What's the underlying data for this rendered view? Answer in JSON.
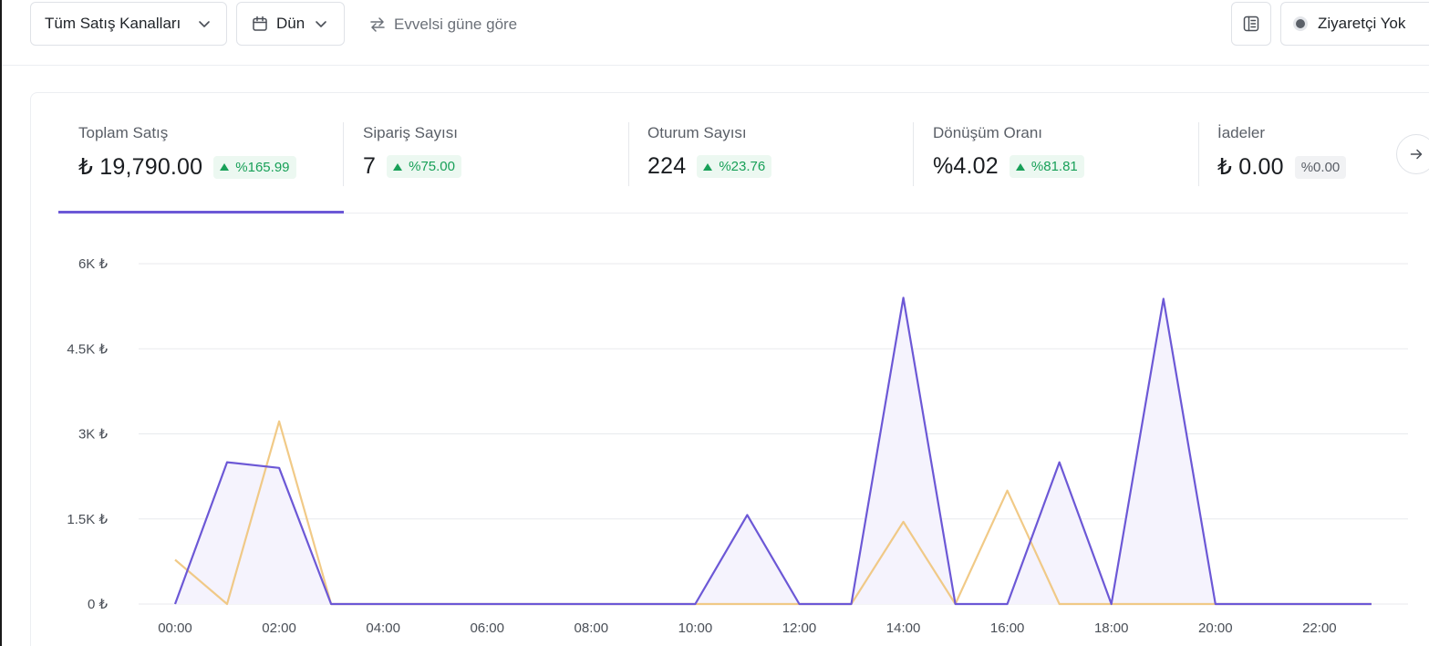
{
  "toolbar": {
    "channel_label": "Tüm Satış Kanalları",
    "date_label": "Dün",
    "compare_label": "Evvelsi güne göre",
    "visitor_label": "Ziyaretçi Yok"
  },
  "metrics": [
    {
      "label": "Toplam Satış",
      "value": "₺ 19,790.00",
      "change": "%165.99",
      "trend": "up"
    },
    {
      "label": "Sipariş Sayısı",
      "value": "7",
      "change": "%75.00",
      "trend": "up"
    },
    {
      "label": "Oturum Sayısı",
      "value": "224",
      "change": "%23.76",
      "trend": "up"
    },
    {
      "label": "Dönüşüm Oranı",
      "value": "%4.02",
      "change": "%81.81",
      "trend": "up"
    },
    {
      "label": "İadeler",
      "value": "₺ 0.00",
      "change": "%0.00",
      "trend": "neutral"
    }
  ],
  "icons": {
    "channel_chevron": "chevron-down-icon",
    "calendar": "calendar-icon",
    "compare": "swap-arrows-icon",
    "panel": "panel-layout-icon",
    "next": "arrow-right-icon"
  },
  "colors": {
    "current": "#6c58d6",
    "previous": "#f0c47a",
    "area": "#f5f3fd",
    "positive": "#18a058"
  },
  "chart_data": {
    "type": "line",
    "ylim": [
      0,
      6000
    ],
    "yticks": [
      {
        "value": 0,
        "label": "0 ₺"
      },
      {
        "value": 1500,
        "label": "1.5K ₺"
      },
      {
        "value": 3000,
        "label": "3K ₺"
      },
      {
        "value": 4500,
        "label": "4.5K ₺"
      },
      {
        "value": 6000,
        "label": "6K ₺"
      }
    ],
    "xticks": [
      "00:00",
      "02:00",
      "04:00",
      "06:00",
      "08:00",
      "10:00",
      "12:00",
      "14:00",
      "16:00",
      "18:00",
      "20:00",
      "22:00"
    ],
    "x": [
      0,
      1,
      2,
      3,
      4,
      5,
      6,
      7,
      8,
      9,
      10,
      11,
      12,
      13,
      14,
      15,
      16,
      17,
      18,
      19,
      20,
      21,
      22,
      23
    ],
    "series": [
      {
        "key": "current",
        "values": [
          0,
          2500,
          2400,
          0,
          0,
          0,
          0,
          0,
          0,
          0,
          0,
          1570,
          0,
          0,
          5400,
          0,
          0,
          2500,
          0,
          5380,
          0,
          0,
          0,
          0
        ]
      },
      {
        "key": "previous",
        "values": [
          780,
          0,
          3220,
          0,
          0,
          0,
          0,
          0,
          0,
          0,
          0,
          0,
          0,
          0,
          1450,
          0,
          2000,
          0,
          0,
          0,
          0,
          0,
          0,
          0
        ]
      }
    ]
  }
}
